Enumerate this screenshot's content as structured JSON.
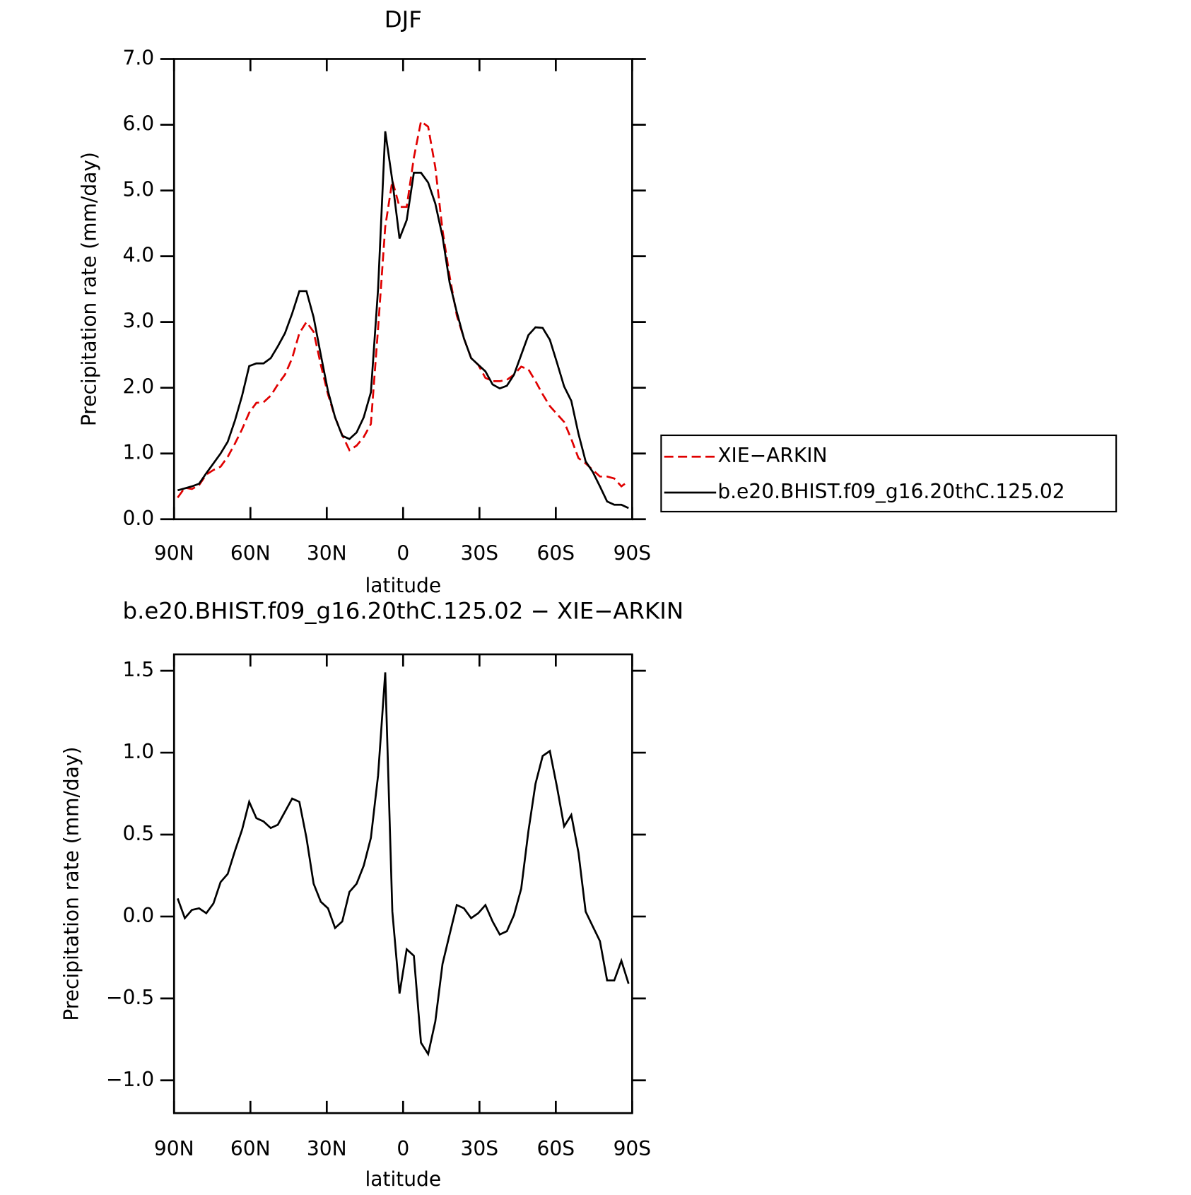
{
  "chart_data": [
    {
      "type": "line",
      "title": "DJF",
      "xlabel": "latitude",
      "ylabel": "Precipitation rate (mm/day)",
      "xlim": [
        90,
        -90
      ],
      "xticks": [
        {
          "value": 90,
          "label": "90N"
        },
        {
          "value": 60,
          "label": "60N"
        },
        {
          "value": 30,
          "label": "30N"
        },
        0,
        {
          "value": -30,
          "label": "30S"
        },
        {
          "value": -60,
          "label": "60S"
        },
        {
          "value": -90,
          "label": "90S"
        }
      ],
      "ylim": [
        0,
        7
      ],
      "yticks": [
        {
          "value": 0,
          "label": "0.0"
        },
        {
          "value": 1,
          "label": "1.0"
        },
        {
          "value": 2,
          "label": "2.0"
        },
        {
          "value": 3,
          "label": "3.0"
        },
        {
          "value": 4,
          "label": "4.0"
        },
        {
          "value": 5,
          "label": "5.0"
        },
        {
          "value": 6,
          "label": "6.0"
        },
        {
          "value": 7,
          "label": "7.0"
        }
      ],
      "legend": "outside-right",
      "x": [
        88.59,
        85.78,
        82.97,
        80.16,
        77.34,
        74.53,
        71.72,
        68.91,
        66.09,
        63.28,
        60.47,
        57.66,
        54.84,
        52.03,
        49.22,
        46.41,
        43.59,
        40.78,
        37.97,
        35.16,
        32.34,
        29.53,
        26.72,
        23.91,
        21.09,
        18.28,
        15.47,
        12.66,
        9.84,
        7.03,
        4.22,
        1.41,
        -1.41,
        -4.22,
        -7.03,
        -9.84,
        -12.66,
        -15.47,
        -18.28,
        -21.09,
        -23.91,
        -26.72,
        -29.53,
        -32.34,
        -35.16,
        -37.97,
        -40.78,
        -43.59,
        -46.41,
        -49.22,
        -52.03,
        -54.84,
        -57.66,
        -60.47,
        -63.28,
        -66.09,
        -68.91,
        -71.72,
        -74.53,
        -77.34,
        -80.16,
        -82.97,
        -85.78,
        -88.59
      ],
      "series": [
        {
          "name": "XIE−ARKIN",
          "color": "#e00000",
          "linestyle": "dashed",
          "values": [
            0.33,
            0.48,
            0.46,
            0.52,
            0.68,
            0.75,
            0.8,
            0.95,
            1.15,
            1.37,
            1.62,
            1.77,
            1.78,
            1.88,
            2.05,
            2.2,
            2.45,
            2.83,
            3.0,
            2.85,
            2.35,
            1.9,
            1.55,
            1.28,
            1.05,
            1.12,
            1.25,
            1.45,
            2.9,
            4.45,
            5.15,
            4.75,
            4.75,
            5.5,
            6.05,
            5.97,
            5.35,
            4.4,
            3.7,
            3.1,
            2.75,
            2.45,
            2.35,
            2.15,
            2.1,
            2.1,
            2.12,
            2.2,
            2.32,
            2.28,
            2.1,
            1.9,
            1.72,
            1.6,
            1.48,
            1.22,
            0.93,
            0.85,
            0.75,
            0.65,
            0.65,
            0.62,
            0.5,
            0.58
          ]
        },
        {
          "name": "b.e20.BHIST.f09_g16.20thC.125.02",
          "color": "#000000",
          "linestyle": "solid",
          "values": [
            0.44,
            0.47,
            0.5,
            0.54,
            0.7,
            0.85,
            1.0,
            1.18,
            1.5,
            1.88,
            2.33,
            2.37,
            2.37,
            2.45,
            2.63,
            2.83,
            3.13,
            3.47,
            3.47,
            3.07,
            2.5,
            1.95,
            1.55,
            1.27,
            1.22,
            1.32,
            1.55,
            1.93,
            3.5,
            5.9,
            5.15,
            4.27,
            4.55,
            5.27,
            5.27,
            5.12,
            4.8,
            4.3,
            3.6,
            3.15,
            2.75,
            2.45,
            2.35,
            2.25,
            2.05,
            1.99,
            2.03,
            2.2,
            2.5,
            2.8,
            2.92,
            2.91,
            2.73,
            2.38,
            2.02,
            1.8,
            1.3,
            0.88,
            0.72,
            0.5,
            0.27,
            0.22,
            0.22,
            0.17
          ]
        }
      ]
    },
    {
      "type": "line",
      "title": "b.e20.BHIST.f09_g16.20thC.125.02 − XIE−ARKIN",
      "xlabel": "latitude",
      "ylabel": "Precipitation rate (mm/day)",
      "xlim": [
        90,
        -90
      ],
      "xticks": [
        {
          "value": 90,
          "label": "90N"
        },
        {
          "value": 60,
          "label": "60N"
        },
        {
          "value": 30,
          "label": "30N"
        },
        0,
        {
          "value": -30,
          "label": "30S"
        },
        {
          "value": -60,
          "label": "60S"
        },
        {
          "value": -90,
          "label": "90S"
        }
      ],
      "ylim": [
        -1.2,
        1.6
      ],
      "yticks": [
        {
          "value": -1,
          "label": "−1.0"
        },
        {
          "value": -0.5,
          "label": "−0.5"
        },
        {
          "value": 0,
          "label": "0.0"
        },
        0.5,
        {
          "value": 1,
          "label": "1.0"
        },
        1.5
      ],
      "x": [
        88.59,
        85.78,
        82.97,
        80.16,
        77.34,
        74.53,
        71.72,
        68.91,
        66.09,
        63.28,
        60.47,
        57.66,
        54.84,
        52.03,
        49.22,
        46.41,
        43.59,
        40.78,
        37.97,
        35.16,
        32.34,
        29.53,
        26.72,
        23.91,
        21.09,
        18.28,
        15.47,
        12.66,
        9.84,
        7.03,
        4.22,
        1.41,
        -1.41,
        -4.22,
        -7.03,
        -9.84,
        -12.66,
        -15.47,
        -18.28,
        -21.09,
        -23.91,
        -26.72,
        -29.53,
        -32.34,
        -35.16,
        -37.97,
        -40.78,
        -43.59,
        -46.41,
        -49.22,
        -52.03,
        -54.84,
        -57.66,
        -60.47,
        -63.28,
        -66.09,
        -68.91,
        -71.72,
        -74.53,
        -77.34,
        -80.16,
        -82.97,
        -85.78,
        -88.59
      ],
      "series": [
        {
          "color": "#000000",
          "linestyle": "solid",
          "values": [
            0.11,
            -0.01,
            0.04,
            0.05,
            0.02,
            0.08,
            0.21,
            0.26,
            0.4,
            0.53,
            0.7,
            0.6,
            0.58,
            0.54,
            0.56,
            0.64,
            0.72,
            0.7,
            0.48,
            0.2,
            0.09,
            0.05,
            -0.07,
            -0.03,
            0.15,
            0.2,
            0.31,
            0.48,
            0.86,
            1.49,
            0.03,
            -0.47,
            -0.2,
            -0.24,
            -0.77,
            -0.84,
            -0.64,
            -0.29,
            -0.11,
            0.07,
            0.05,
            -0.01,
            0.02,
            0.07,
            -0.03,
            -0.11,
            -0.09,
            0.01,
            0.17,
            0.52,
            0.81,
            0.98,
            1.01,
            0.79,
            0.55,
            0.62,
            0.39,
            0.03,
            -0.06,
            -0.15,
            -0.39,
            -0.39,
            -0.27,
            -0.41
          ]
        }
      ]
    }
  ]
}
